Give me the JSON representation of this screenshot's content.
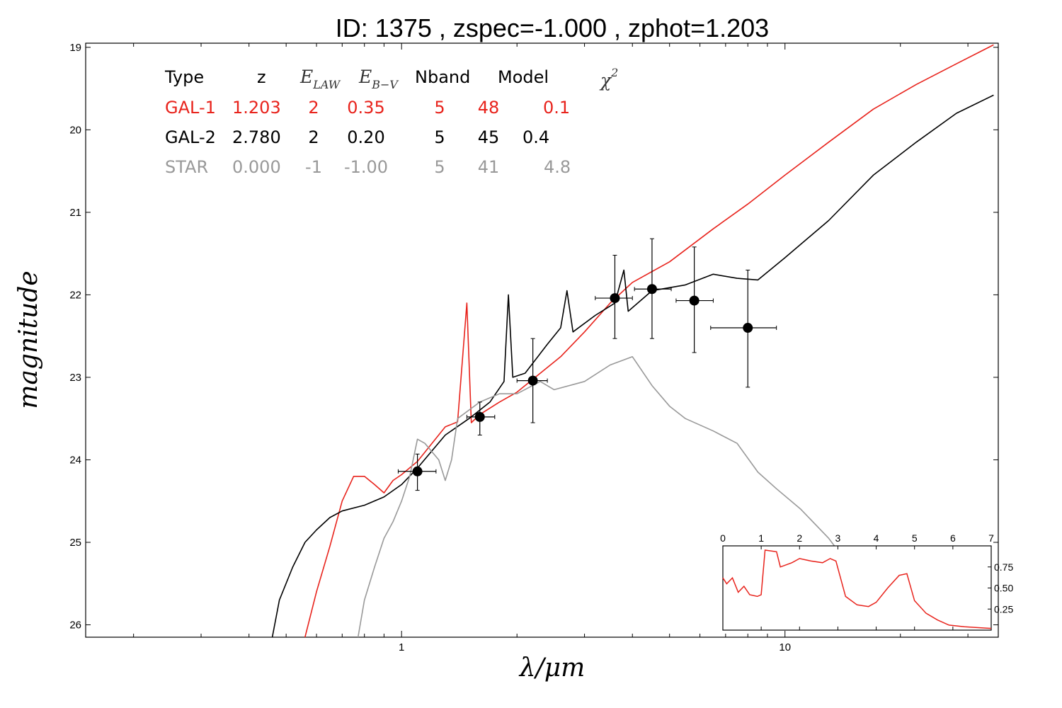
{
  "chart_data": {
    "type": "line",
    "title": "ID:  1375  , zspec=-1.000 , zphot=1.203",
    "xlabel": "λ/μm",
    "ylabel": "magnitude",
    "x_scale": "log",
    "xlim": [
      0.15,
      36
    ],
    "ylim": [
      26.15,
      18.95
    ],
    "y_inverted": true,
    "x_tick_labels": [
      "1",
      "10"
    ],
    "y_tick_labels": [
      "19",
      "20",
      "21",
      "22",
      "23",
      "24",
      "25",
      "26"
    ],
    "table": {
      "headers": {
        "type": "Type",
        "z": "z",
        "elaw_main": "E",
        "elaw_sub": "LAW",
        "ebv_main": "E",
        "ebv_sub": "B−V",
        "nband": "Nband",
        "model": "Model",
        "chi2_main": "χ",
        "chi2_sup": "2"
      },
      "rows": [
        {
          "type": "GAL-1",
          "z": "1.203",
          "elaw": "2",
          "ebv": "0.35",
          "nband": "5",
          "model": "48",
          "chi2": "0.1",
          "color": "#e8231c"
        },
        {
          "type": "GAL-2",
          "z": "2.780",
          "elaw": "2",
          "ebv": "0.20",
          "nband": "5",
          "model": "45",
          "chi2": "0.4",
          "color": "#000000"
        },
        {
          "type": "STAR",
          "z": "0.000",
          "elaw": "-1",
          "ebv": "-1.00",
          "nband": "5",
          "model": "41",
          "chi2": "4.8",
          "color": "#999999"
        }
      ]
    },
    "photometry": [
      {
        "x": 1.1,
        "y": 24.14,
        "xerr": [
          0.98,
          1.23
        ],
        "yerr": [
          23.93,
          24.37
        ]
      },
      {
        "x": 1.6,
        "y": 23.48,
        "xerr": [
          1.48,
          1.75
        ],
        "yerr": [
          23.3,
          23.7
        ]
      },
      {
        "x": 2.2,
        "y": 23.04,
        "xerr": [
          2.0,
          2.4
        ],
        "yerr": [
          22.53,
          23.55
        ]
      },
      {
        "x": 3.6,
        "y": 22.04,
        "xerr": [
          3.2,
          4.0
        ],
        "yerr": [
          21.52,
          22.53
        ]
      },
      {
        "x": 4.5,
        "y": 21.93,
        "xerr": [
          4.05,
          5.05
        ],
        "yerr": [
          21.32,
          22.53
        ]
      },
      {
        "x": 5.8,
        "y": 22.07,
        "xerr": [
          5.2,
          6.5
        ],
        "yerr": [
          21.42,
          22.7
        ]
      },
      {
        "x": 8.0,
        "y": 22.4,
        "xerr": [
          6.4,
          9.5
        ],
        "yerr": [
          21.7,
          23.12
        ]
      }
    ],
    "series": [
      {
        "color": "#e8231c",
        "points": [
          [
            0.56,
            26.15
          ],
          [
            0.6,
            25.6
          ],
          [
            0.65,
            25.05
          ],
          [
            0.7,
            24.5
          ],
          [
            0.75,
            24.2
          ],
          [
            0.8,
            24.2
          ],
          [
            0.85,
            24.3
          ],
          [
            0.9,
            24.4
          ],
          [
            0.95,
            24.25
          ],
          [
            1.0,
            24.18
          ],
          [
            1.1,
            24.02
          ],
          [
            1.2,
            23.8
          ],
          [
            1.3,
            23.6
          ],
          [
            1.4,
            23.54
          ],
          [
            1.48,
            22.1
          ],
          [
            1.52,
            23.55
          ],
          [
            1.6,
            23.45
          ],
          [
            1.8,
            23.3
          ],
          [
            2.0,
            23.18
          ],
          [
            2.3,
            22.95
          ],
          [
            2.6,
            22.75
          ],
          [
            3.0,
            22.45
          ],
          [
            3.5,
            22.1
          ],
          [
            4.0,
            21.85
          ],
          [
            5.0,
            21.6
          ],
          [
            6.5,
            21.2
          ],
          [
            8,
            20.9
          ],
          [
            10,
            20.55
          ],
          [
            13,
            20.15
          ],
          [
            17,
            19.75
          ],
          [
            22,
            19.45
          ],
          [
            28,
            19.2
          ],
          [
            35,
            18.97
          ]
        ]
      },
      {
        "color": "#000000",
        "points": [
          [
            0.46,
            26.15
          ],
          [
            0.48,
            25.7
          ],
          [
            0.52,
            25.3
          ],
          [
            0.56,
            25.0
          ],
          [
            0.6,
            24.85
          ],
          [
            0.65,
            24.7
          ],
          [
            0.7,
            24.62
          ],
          [
            0.8,
            24.55
          ],
          [
            0.9,
            24.45
          ],
          [
            1.0,
            24.3
          ],
          [
            1.1,
            24.1
          ],
          [
            1.3,
            23.7
          ],
          [
            1.5,
            23.5
          ],
          [
            1.7,
            23.3
          ],
          [
            1.85,
            23.05
          ],
          [
            1.9,
            22.0
          ],
          [
            1.95,
            23.0
          ],
          [
            2.1,
            22.95
          ],
          [
            2.4,
            22.6
          ],
          [
            2.6,
            22.4
          ],
          [
            2.7,
            21.95
          ],
          [
            2.8,
            22.45
          ],
          [
            3.2,
            22.25
          ],
          [
            3.6,
            22.1
          ],
          [
            3.8,
            21.7
          ],
          [
            3.9,
            22.2
          ],
          [
            4.5,
            21.95
          ],
          [
            5.5,
            21.88
          ],
          [
            6.5,
            21.75
          ],
          [
            7.5,
            21.8
          ],
          [
            8.5,
            21.82
          ],
          [
            10,
            21.55
          ],
          [
            13,
            21.1
          ],
          [
            17,
            20.55
          ],
          [
            22,
            20.15
          ],
          [
            28,
            19.8
          ],
          [
            35,
            19.58
          ]
        ]
      },
      {
        "color": "#999999",
        "points": [
          [
            0.77,
            26.15
          ],
          [
            0.8,
            25.7
          ],
          [
            0.85,
            25.3
          ],
          [
            0.9,
            24.95
          ],
          [
            0.95,
            24.75
          ],
          [
            1.0,
            24.5
          ],
          [
            1.05,
            24.2
          ],
          [
            1.1,
            23.75
          ],
          [
            1.15,
            23.8
          ],
          [
            1.25,
            24.0
          ],
          [
            1.3,
            24.25
          ],
          [
            1.35,
            24.0
          ],
          [
            1.4,
            23.5
          ],
          [
            1.6,
            23.3
          ],
          [
            1.8,
            23.2
          ],
          [
            2.0,
            23.2
          ],
          [
            2.3,
            23.05
          ],
          [
            2.5,
            23.15
          ],
          [
            3.0,
            23.05
          ],
          [
            3.5,
            22.85
          ],
          [
            4.0,
            22.75
          ],
          [
            4.5,
            23.1
          ],
          [
            5.0,
            23.35
          ],
          [
            5.5,
            23.5
          ],
          [
            6.5,
            23.65
          ],
          [
            7.5,
            23.8
          ],
          [
            8.5,
            24.15
          ],
          [
            9.5,
            24.35
          ],
          [
            11,
            24.6
          ],
          [
            13,
            24.95
          ],
          [
            14,
            25.15
          ]
        ]
      }
    ],
    "inset": {
      "x_tick_labels": [
        "0",
        "1",
        "2",
        "3",
        "4",
        "5",
        "6",
        "7"
      ],
      "y_tick_labels": [
        "0.25",
        "0.50",
        "0.75"
      ],
      "xlim": [
        0,
        7
      ],
      "ylim": [
        0,
        1.0
      ],
      "color": "#e8231c",
      "points": [
        [
          0,
          0.62
        ],
        [
          0.1,
          0.55
        ],
        [
          0.25,
          0.62
        ],
        [
          0.4,
          0.45
        ],
        [
          0.55,
          0.52
        ],
        [
          0.7,
          0.42
        ],
        [
          0.9,
          0.4
        ],
        [
          1.0,
          0.42
        ],
        [
          1.1,
          0.95
        ],
        [
          1.4,
          0.93
        ],
        [
          1.5,
          0.75
        ],
        [
          1.8,
          0.8
        ],
        [
          2.0,
          0.85
        ],
        [
          2.3,
          0.82
        ],
        [
          2.6,
          0.8
        ],
        [
          2.8,
          0.85
        ],
        [
          2.95,
          0.82
        ],
        [
          3.2,
          0.4
        ],
        [
          3.5,
          0.3
        ],
        [
          3.8,
          0.28
        ],
        [
          4.0,
          0.33
        ],
        [
          4.3,
          0.5
        ],
        [
          4.6,
          0.65
        ],
        [
          4.8,
          0.67
        ],
        [
          5.0,
          0.35
        ],
        [
          5.3,
          0.2
        ],
        [
          5.6,
          0.12
        ],
        [
          5.9,
          0.06
        ],
        [
          6.3,
          0.04
        ],
        [
          7.0,
          0.02
        ]
      ]
    }
  }
}
